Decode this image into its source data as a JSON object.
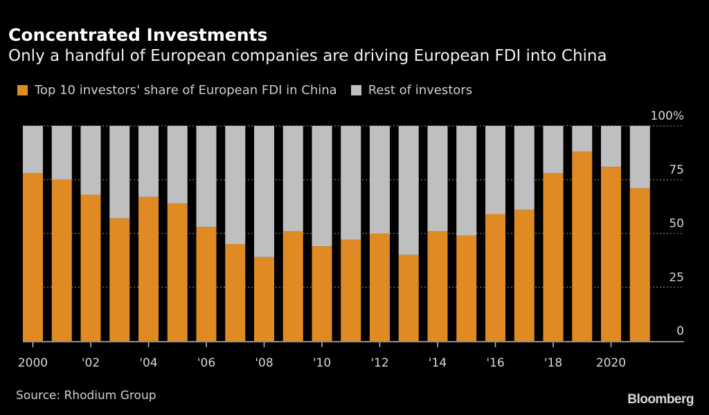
{
  "chart_data": {
    "type": "bar",
    "stacked": true,
    "title": "Concentrated Investments",
    "subtitle": "Only a handful of European companies are driving European FDI into China",
    "xlabel": "",
    "ylabel": "",
    "ylim": [
      0,
      100
    ],
    "y_ticks": [
      {
        "value": 0,
        "label": "0"
      },
      {
        "value": 25,
        "label": "25"
      },
      {
        "value": 50,
        "label": "50"
      },
      {
        "value": 75,
        "label": "75"
      },
      {
        "value": 100,
        "label": "100%"
      }
    ],
    "y_axis_side": "right",
    "grid": true,
    "legend_position": "top-left",
    "categories": [
      2000,
      2001,
      2002,
      2003,
      2004,
      2005,
      2006,
      2007,
      2008,
      2009,
      2010,
      2011,
      2012,
      2013,
      2014,
      2015,
      2016,
      2017,
      2018,
      2019,
      2020,
      2021
    ],
    "x_tick_labels": [
      {
        "year": 2000,
        "label": "2000"
      },
      {
        "year": 2002,
        "label": "'02"
      },
      {
        "year": 2004,
        "label": "'04"
      },
      {
        "year": 2006,
        "label": "'06"
      },
      {
        "year": 2008,
        "label": "'08"
      },
      {
        "year": 2010,
        "label": "'10"
      },
      {
        "year": 2012,
        "label": "'12"
      },
      {
        "year": 2014,
        "label": "'14"
      },
      {
        "year": 2016,
        "label": "'16"
      },
      {
        "year": 2018,
        "label": "'18"
      },
      {
        "year": 2020,
        "label": "2020"
      }
    ],
    "series": [
      {
        "name": "Top 10 investors' share of European FDI in China",
        "color": "#E08A23",
        "values": [
          78,
          75,
          68,
          57,
          67,
          64,
          53,
          45,
          39,
          51,
          44,
          47,
          50,
          40,
          51,
          49,
          59,
          61,
          78,
          88,
          81,
          71
        ]
      },
      {
        "name": "Rest of investors",
        "color": "#BFBFBF",
        "values": [
          22,
          25,
          32,
          43,
          33,
          36,
          47,
          55,
          61,
          49,
          56,
          53,
          50,
          60,
          49,
          51,
          41,
          39,
          22,
          12,
          19,
          29
        ]
      }
    ],
    "source": "Source: Rhodium Group",
    "brand": "Bloomberg"
  },
  "colors": {
    "background": "#000000",
    "grid": "#6b6b6b",
    "axis": "#bfbfbf"
  }
}
